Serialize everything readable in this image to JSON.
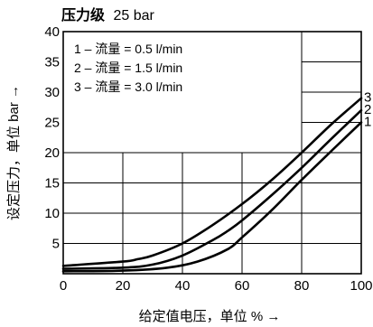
{
  "chart_data": {
    "type": "line",
    "title_prefix": "压力级",
    "title_value": "25 bar",
    "xlabel": "给定值电压，单位 % →",
    "ylabel": "设定压力，单位 bar →",
    "xlim": [
      0,
      100
    ],
    "ylim": [
      0,
      40
    ],
    "x_ticks": [
      0,
      20,
      40,
      60,
      80,
      100
    ],
    "y_ticks": [
      5,
      10,
      15,
      20,
      25,
      30,
      35,
      40
    ],
    "grid": true,
    "legend_position": "top-left",
    "legend": [
      "1 – 流量 = 0.5 l/min",
      "2 – 流量 = 1.5 l/min",
      "3 – 流量 = 3.0 l/min"
    ],
    "series": [
      {
        "name": "1",
        "x": [
          0,
          20,
          35,
          45,
          55,
          60,
          70,
          80,
          90,
          100
        ],
        "y": [
          0.4,
          0.5,
          1.0,
          2.0,
          4.0,
          6.0,
          10.5,
          15.5,
          20.3,
          25.0
        ]
      },
      {
        "name": "2",
        "x": [
          0,
          20,
          30,
          40,
          50,
          55,
          60,
          70,
          80,
          90,
          100
        ],
        "y": [
          0.8,
          1.0,
          1.5,
          3.0,
          5.5,
          7.0,
          8.8,
          13.0,
          17.5,
          22.3,
          27.0
        ]
      },
      {
        "name": "3",
        "x": [
          0,
          20,
          25,
          30,
          40,
          50,
          60,
          70,
          80,
          90,
          100
        ],
        "y": [
          1.3,
          2.0,
          2.4,
          3.0,
          5.0,
          8.0,
          11.5,
          15.5,
          20.0,
          24.7,
          29.0
        ]
      }
    ]
  }
}
